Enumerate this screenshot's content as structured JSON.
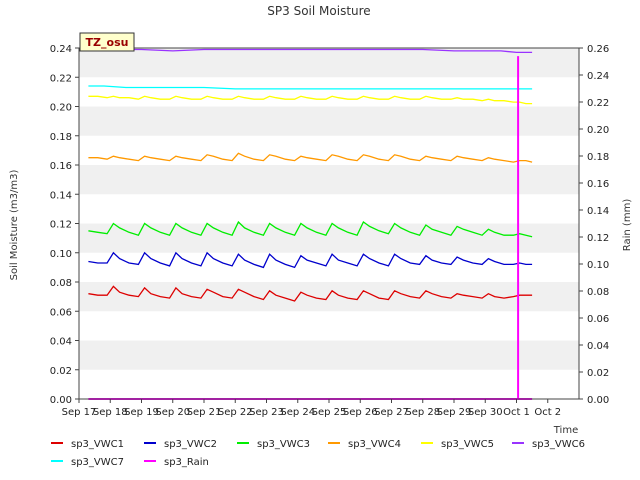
{
  "chart_data": {
    "type": "line",
    "title": "SP3 Soil Moisture",
    "xlabel": "Time",
    "ylabel": "Soil Moisture (m3/m3)",
    "y2label": "Rain (mm)",
    "badge": "TZ_osu",
    "xlim": [
      17,
      33
    ],
    "ylim": [
      0,
      0.24
    ],
    "y2lim": [
      0,
      0.26
    ],
    "x_tick_labels": [
      "Sep 17",
      "Sep 18",
      "Sep 19",
      "Sep 20",
      "Sep 21",
      "Sep 22",
      "Sep 23",
      "Sep 24",
      "Sep 25",
      "Sep 26",
      "Sep 27",
      "Sep 28",
      "Sep 29",
      "Sep 30",
      "Oct 1",
      "Oct 2"
    ],
    "y_tick_labels": [
      "0.00",
      "0.02",
      "0.04",
      "0.06",
      "0.08",
      "0.10",
      "0.12",
      "0.14",
      "0.16",
      "0.18",
      "0.20",
      "0.22",
      "0.24"
    ],
    "y2_tick_labels": [
      "0.00",
      "0.02",
      "0.04",
      "0.06",
      "0.08",
      "0.10",
      "0.12",
      "0.14",
      "0.16",
      "0.18",
      "0.20",
      "0.22",
      "0.24",
      "0.26"
    ],
    "grid": "horizontal bands",
    "legend_position": "bottom",
    "series": [
      {
        "name": "sp3_VWC1",
        "color": "#dd0000",
        "axis": "left",
        "x": [
          17.3,
          17.6,
          17.9,
          18.1,
          18.3,
          18.6,
          18.9,
          19.1,
          19.3,
          19.6,
          19.9,
          20.1,
          20.3,
          20.6,
          20.9,
          21.1,
          21.3,
          21.6,
          21.9,
          22.1,
          22.3,
          22.6,
          22.9,
          23.1,
          23.3,
          23.6,
          23.9,
          24.1,
          24.3,
          24.6,
          24.9,
          25.1,
          25.3,
          25.6,
          25.9,
          26.1,
          26.3,
          26.6,
          26.9,
          27.1,
          27.3,
          27.6,
          27.9,
          28.1,
          28.3,
          28.6,
          28.9,
          29.1,
          29.3,
          29.6,
          29.9,
          30.1,
          30.3,
          30.6,
          30.9,
          31.1,
          31.3,
          31.5
        ],
        "y": [
          0.072,
          0.071,
          0.071,
          0.077,
          0.073,
          0.071,
          0.07,
          0.076,
          0.072,
          0.07,
          0.069,
          0.076,
          0.072,
          0.07,
          0.069,
          0.075,
          0.073,
          0.07,
          0.069,
          0.075,
          0.073,
          0.07,
          0.068,
          0.074,
          0.071,
          0.069,
          0.067,
          0.073,
          0.071,
          0.069,
          0.068,
          0.074,
          0.071,
          0.069,
          0.068,
          0.074,
          0.072,
          0.069,
          0.068,
          0.074,
          0.072,
          0.07,
          0.069,
          0.074,
          0.072,
          0.07,
          0.069,
          0.072,
          0.071,
          0.07,
          0.069,
          0.072,
          0.07,
          0.069,
          0.07,
          0.071,
          0.071,
          0.071
        ]
      },
      {
        "name": "sp3_VWC2",
        "color": "#0000cc",
        "axis": "left",
        "x": [
          17.3,
          17.6,
          17.9,
          18.1,
          18.3,
          18.6,
          18.9,
          19.1,
          19.3,
          19.6,
          19.9,
          20.1,
          20.3,
          20.6,
          20.9,
          21.1,
          21.3,
          21.6,
          21.9,
          22.1,
          22.3,
          22.6,
          22.9,
          23.1,
          23.3,
          23.6,
          23.9,
          24.1,
          24.3,
          24.6,
          24.9,
          25.1,
          25.3,
          25.6,
          25.9,
          26.1,
          26.3,
          26.6,
          26.9,
          27.1,
          27.3,
          27.6,
          27.9,
          28.1,
          28.3,
          28.6,
          28.9,
          29.1,
          29.3,
          29.6,
          29.9,
          30.1,
          30.3,
          30.6,
          30.9,
          31.1,
          31.3,
          31.5
        ],
        "y": [
          0.094,
          0.093,
          0.093,
          0.1,
          0.096,
          0.093,
          0.092,
          0.1,
          0.096,
          0.093,
          0.091,
          0.1,
          0.096,
          0.093,
          0.091,
          0.1,
          0.096,
          0.093,
          0.091,
          0.099,
          0.095,
          0.092,
          0.09,
          0.099,
          0.095,
          0.092,
          0.09,
          0.098,
          0.095,
          0.093,
          0.091,
          0.099,
          0.095,
          0.093,
          0.091,
          0.099,
          0.096,
          0.093,
          0.091,
          0.099,
          0.096,
          0.093,
          0.092,
          0.098,
          0.095,
          0.093,
          0.092,
          0.097,
          0.095,
          0.093,
          0.092,
          0.096,
          0.094,
          0.092,
          0.092,
          0.093,
          0.092,
          0.092
        ]
      },
      {
        "name": "sp3_VWC3",
        "color": "#00ee00",
        "axis": "left",
        "x": [
          17.3,
          17.6,
          17.9,
          18.1,
          18.3,
          18.6,
          18.9,
          19.1,
          19.3,
          19.6,
          19.9,
          20.1,
          20.3,
          20.6,
          20.9,
          21.1,
          21.3,
          21.6,
          21.9,
          22.1,
          22.3,
          22.6,
          22.9,
          23.1,
          23.3,
          23.6,
          23.9,
          24.1,
          24.3,
          24.6,
          24.9,
          25.1,
          25.3,
          25.6,
          25.9,
          26.1,
          26.3,
          26.6,
          26.9,
          27.1,
          27.3,
          27.6,
          27.9,
          28.1,
          28.3,
          28.6,
          28.9,
          29.1,
          29.3,
          29.6,
          29.9,
          30.1,
          30.3,
          30.6,
          30.9,
          31.1,
          31.3,
          31.5
        ],
        "y": [
          0.115,
          0.114,
          0.113,
          0.12,
          0.117,
          0.114,
          0.112,
          0.12,
          0.117,
          0.114,
          0.112,
          0.12,
          0.117,
          0.114,
          0.112,
          0.12,
          0.117,
          0.114,
          0.112,
          0.121,
          0.117,
          0.114,
          0.112,
          0.12,
          0.117,
          0.114,
          0.112,
          0.12,
          0.117,
          0.114,
          0.112,
          0.12,
          0.117,
          0.114,
          0.112,
          0.121,
          0.118,
          0.115,
          0.113,
          0.12,
          0.117,
          0.114,
          0.112,
          0.119,
          0.116,
          0.114,
          0.112,
          0.118,
          0.116,
          0.114,
          0.112,
          0.116,
          0.114,
          0.112,
          0.112,
          0.113,
          0.112,
          0.111
        ]
      },
      {
        "name": "sp3_VWC4",
        "color": "#ff9900",
        "axis": "left",
        "x": [
          17.3,
          17.6,
          17.9,
          18.1,
          18.3,
          18.6,
          18.9,
          19.1,
          19.3,
          19.6,
          19.9,
          20.1,
          20.3,
          20.6,
          20.9,
          21.1,
          21.3,
          21.6,
          21.9,
          22.1,
          22.3,
          22.6,
          22.9,
          23.1,
          23.3,
          23.6,
          23.9,
          24.1,
          24.3,
          24.6,
          24.9,
          25.1,
          25.3,
          25.6,
          25.9,
          26.1,
          26.3,
          26.6,
          26.9,
          27.1,
          27.3,
          27.6,
          27.9,
          28.1,
          28.3,
          28.6,
          28.9,
          29.1,
          29.3,
          29.6,
          29.9,
          30.1,
          30.3,
          30.6,
          30.9,
          31.1,
          31.3,
          31.5
        ],
        "y": [
          0.165,
          0.165,
          0.164,
          0.166,
          0.165,
          0.164,
          0.163,
          0.166,
          0.165,
          0.164,
          0.163,
          0.166,
          0.165,
          0.164,
          0.163,
          0.167,
          0.166,
          0.164,
          0.163,
          0.168,
          0.166,
          0.164,
          0.163,
          0.167,
          0.166,
          0.164,
          0.163,
          0.166,
          0.165,
          0.164,
          0.163,
          0.167,
          0.166,
          0.164,
          0.163,
          0.167,
          0.166,
          0.164,
          0.163,
          0.167,
          0.166,
          0.164,
          0.163,
          0.166,
          0.165,
          0.164,
          0.163,
          0.166,
          0.165,
          0.164,
          0.163,
          0.165,
          0.164,
          0.163,
          0.162,
          0.163,
          0.163,
          0.162
        ]
      },
      {
        "name": "sp3_VWC5",
        "color": "#ffff00",
        "axis": "left",
        "x": [
          17.3,
          17.6,
          17.9,
          18.1,
          18.3,
          18.6,
          18.9,
          19.1,
          19.3,
          19.6,
          19.9,
          20.1,
          20.3,
          20.6,
          20.9,
          21.1,
          21.3,
          21.6,
          21.9,
          22.1,
          22.3,
          22.6,
          22.9,
          23.1,
          23.3,
          23.6,
          23.9,
          24.1,
          24.3,
          24.6,
          24.9,
          25.1,
          25.3,
          25.6,
          25.9,
          26.1,
          26.3,
          26.6,
          26.9,
          27.1,
          27.3,
          27.6,
          27.9,
          28.1,
          28.3,
          28.6,
          28.9,
          29.1,
          29.3,
          29.6,
          29.9,
          30.1,
          30.3,
          30.6,
          30.9,
          31.1,
          31.3,
          31.5
        ],
        "y": [
          0.207,
          0.207,
          0.206,
          0.207,
          0.206,
          0.206,
          0.205,
          0.207,
          0.206,
          0.205,
          0.205,
          0.207,
          0.206,
          0.205,
          0.205,
          0.207,
          0.206,
          0.205,
          0.205,
          0.207,
          0.206,
          0.205,
          0.205,
          0.207,
          0.206,
          0.205,
          0.205,
          0.207,
          0.206,
          0.205,
          0.205,
          0.207,
          0.206,
          0.205,
          0.205,
          0.207,
          0.206,
          0.205,
          0.205,
          0.207,
          0.206,
          0.205,
          0.205,
          0.207,
          0.206,
          0.205,
          0.205,
          0.206,
          0.205,
          0.205,
          0.204,
          0.205,
          0.204,
          0.204,
          0.203,
          0.203,
          0.202,
          0.202
        ]
      },
      {
        "name": "sp3_VWC6",
        "color": "#9933ff",
        "axis": "left",
        "x": [
          17.8,
          19,
          20,
          21,
          22,
          23,
          24,
          25,
          26,
          27,
          28,
          29,
          30,
          30.5,
          31,
          31.5
        ],
        "y": [
          0.239,
          0.239,
          0.238,
          0.239,
          0.239,
          0.239,
          0.239,
          0.239,
          0.239,
          0.239,
          0.239,
          0.238,
          0.238,
          0.238,
          0.237,
          0.237
        ]
      },
      {
        "name": "sp3_VWC7",
        "color": "#00ffff",
        "axis": "left",
        "x": [
          17.3,
          17.8,
          18.5,
          19,
          20,
          21,
          22,
          23,
          24,
          25,
          26,
          27,
          28,
          29,
          30,
          30.5,
          31,
          31.5
        ],
        "y": [
          0.214,
          0.214,
          0.213,
          0.213,
          0.213,
          0.213,
          0.212,
          0.212,
          0.212,
          0.212,
          0.212,
          0.212,
          0.212,
          0.212,
          0.212,
          0.212,
          0.212,
          0.212
        ]
      },
      {
        "name": "sp3_Rain",
        "color": "#ff00ff",
        "axis": "right",
        "x": [
          17.3,
          31.05,
          31.05,
          31.05,
          31.5
        ],
        "y": [
          0.0,
          0.0,
          0.254,
          0.0,
          0.0
        ]
      }
    ]
  }
}
